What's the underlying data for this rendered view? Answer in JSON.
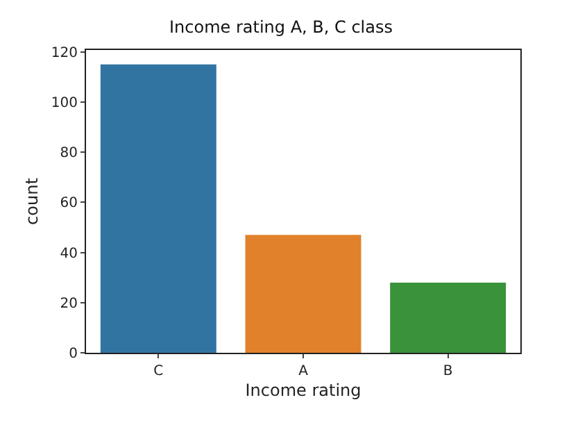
{
  "chart_data": {
    "type": "bar",
    "title": "Income rating A, B, C class",
    "xlabel": "Income rating",
    "ylabel": "count",
    "categories": [
      "C",
      "A",
      "B"
    ],
    "values": [
      115,
      47,
      28
    ],
    "colors": [
      "#3274a1",
      "#e1812c",
      "#3a923a"
    ],
    "ylim": [
      0,
      120.75
    ],
    "yticks": [
      0,
      20,
      40,
      60,
      80,
      100,
      120
    ]
  }
}
